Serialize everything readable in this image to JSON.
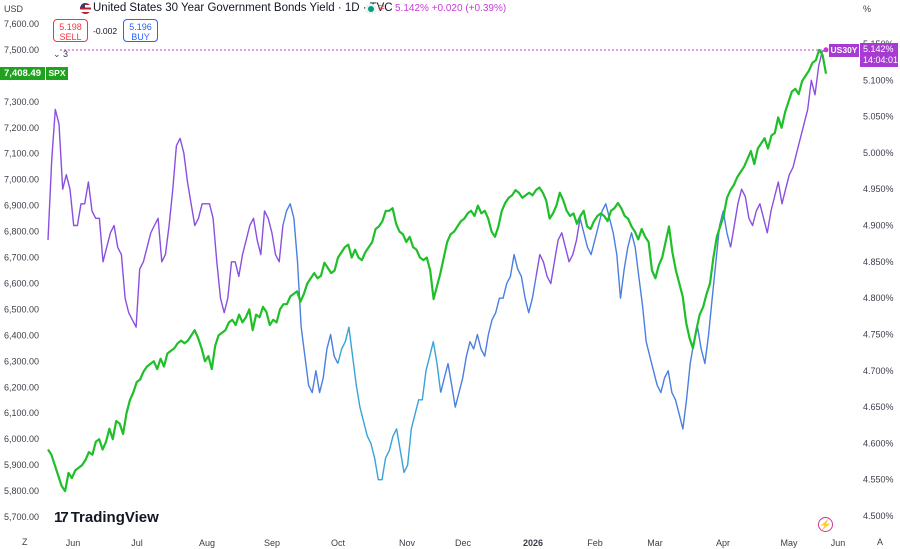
{
  "header": {
    "title": "United States 30 Year Government Bonds Yield · 1D · TVC",
    "price_line": "5.142% +0.020 (+0.39%)",
    "wave_icon": "≈",
    "sell_price": "5.198",
    "sell_label": "SELL",
    "spread": "-0.002",
    "buy_price": "5.196",
    "buy_label": "BUY",
    "collapse": "⌄ 3"
  },
  "axes": {
    "left_unit": "USD",
    "right_unit": "%",
    "spx_value": "7,408.49",
    "spx_tag": "SPX",
    "us_tag": "US30Y",
    "us_value": "5.142%",
    "us_countdown": "14:04:01"
  },
  "footer": {
    "logo_text": "TradingView",
    "logo_mark": "17",
    "z_button": "Z",
    "a_button": "A"
  },
  "colors": {
    "spx": "#1fbf2a",
    "us30y_purple": "#8a4fe0",
    "us30y_blue": "#4a7fe0",
    "us30y_teal": "#37a3d8",
    "current_line": "#c93bd9"
  },
  "chart_data": {
    "type": "line",
    "title": "United States 30 Year Government Bonds Yield · 1D · TVC",
    "left_axis": {
      "label": "USD",
      "ticks": [
        "7,600.00",
        "7,500.00",
        "7,400.00",
        "7,300.00",
        "7,200.00",
        "7,100.00",
        "7,000.00",
        "6,900.00",
        "6,800.00",
        "6,700.00",
        "6,600.00",
        "6,500.00",
        "6,400.00",
        "6,300.00",
        "6,200.00",
        "6,100.00",
        "6,000.00",
        "5,900.00",
        "5,800.00",
        "5,700.00"
      ],
      "range": [
        5700,
        7600
      ]
    },
    "right_axis": {
      "label": "%",
      "ticks": [
        "5.150%",
        "5.100%",
        "5.050%",
        "5.000%",
        "4.950%",
        "4.900%",
        "4.850%",
        "4.800%",
        "4.750%",
        "4.700%",
        "4.650%",
        "4.600%",
        "4.550%",
        "4.500%"
      ],
      "range": [
        4.5,
        5.15
      ]
    },
    "x_labels": [
      "Jun",
      "Jul",
      "Aug",
      "Sep",
      "Oct",
      "Nov",
      "Dec",
      "2026",
      "Feb",
      "Mar",
      "Apr",
      "May",
      "Jun"
    ],
    "x_labels_bold": [
      "2026"
    ],
    "grid": false,
    "series": [
      {
        "name": "SPX",
        "axis": "left",
        "values": [
          5960,
          5940,
          5900,
          5860,
          5820,
          5800,
          5870,
          5850,
          5880,
          5890,
          5900,
          5920,
          5950,
          5940,
          5990,
          6000,
          5960,
          5990,
          6040,
          6000,
          6070,
          6060,
          6020,
          6100,
          6150,
          6180,
          6220,
          6230,
          6260,
          6280,
          6290,
          6300,
          6270,
          6310,
          6280,
          6330,
          6340,
          6350,
          6370,
          6380,
          6370,
          6380,
          6400,
          6420,
          6390,
          6350,
          6300,
          6320,
          6270,
          6360,
          6400,
          6410,
          6420,
          6450,
          6460,
          6440,
          6480,
          6450,
          6470,
          6500,
          6420,
          6480,
          6470,
          6510,
          6490,
          6440,
          6460,
          6450,
          6500,
          6520,
          6520,
          6550,
          6560,
          6570,
          6530,
          6560,
          6600,
          6620,
          6640,
          6620,
          6630,
          6680,
          6660,
          6640,
          6650,
          6700,
          6720,
          6740,
          6750,
          6700,
          6730,
          6700,
          6690,
          6720,
          6740,
          6760,
          6810,
          6820,
          6840,
          6880,
          6880,
          6890,
          6830,
          6800,
          6790,
          6760,
          6780,
          6740,
          6730,
          6700,
          6690,
          6700,
          6650,
          6540,
          6590,
          6640,
          6700,
          6760,
          6790,
          6800,
          6820,
          6840,
          6850,
          6870,
          6880,
          6860,
          6900,
          6870,
          6880,
          6850,
          6800,
          6780,
          6820,
          6880,
          6910,
          6930,
          6940,
          6960,
          6950,
          6930,
          6940,
          6950,
          6940,
          6960,
          6970,
          6950,
          6920,
          6850,
          6870,
          6900,
          6950,
          6920,
          6880,
          6860,
          6870,
          6830,
          6860,
          6880,
          6820,
          6810,
          6840,
          6860,
          6870,
          6860,
          6840,
          6880,
          6890,
          6910,
          6890,
          6860,
          6850,
          6820,
          6800,
          6770,
          6810,
          6780,
          6760,
          6650,
          6620,
          6670,
          6700,
          6760,
          6820,
          6720,
          6650,
          6600,
          6550,
          6450,
          6390,
          6350,
          6420,
          6480,
          6510,
          6560,
          6600,
          6700,
          6780,
          6820,
          6860,
          6930,
          6960,
          6980,
          7010,
          7030,
          7050,
          7080,
          7110,
          7060,
          7120,
          7140,
          7160,
          7120,
          7170,
          7180,
          7240,
          7200,
          7260,
          7300,
          7340,
          7350,
          7330,
          7380,
          7400,
          7420,
          7450,
          7460,
          7500,
          7480,
          7408.49
        ]
      },
      {
        "name": "US30Y",
        "axis": "right",
        "values": [
          4.88,
          4.99,
          5.06,
          5.04,
          4.95,
          4.97,
          4.95,
          4.9,
          4.9,
          4.93,
          4.93,
          4.96,
          4.92,
          4.91,
          4.91,
          4.85,
          4.87,
          4.89,
          4.9,
          4.87,
          4.86,
          4.8,
          4.78,
          4.77,
          4.76,
          4.84,
          4.85,
          4.87,
          4.89,
          4.9,
          4.91,
          4.85,
          4.86,
          4.9,
          4.95,
          5.01,
          5.02,
          5.0,
          4.96,
          4.93,
          4.9,
          4.91,
          4.93,
          4.93,
          4.93,
          4.91,
          4.85,
          4.8,
          4.78,
          4.8,
          4.85,
          4.85,
          4.83,
          4.86,
          4.88,
          4.9,
          4.91,
          4.88,
          4.86,
          4.92,
          4.91,
          4.89,
          4.86,
          4.85,
          4.9,
          4.92,
          4.93,
          4.91,
          4.85,
          4.76,
          4.72,
          4.68,
          4.67,
          4.7,
          4.67,
          4.69,
          4.73,
          4.75,
          4.72,
          4.71,
          4.73,
          4.74,
          4.76,
          4.72,
          4.68,
          4.65,
          4.63,
          4.61,
          4.6,
          4.58,
          4.55,
          4.55,
          4.58,
          4.59,
          4.61,
          4.62,
          4.59,
          4.56,
          4.57,
          4.62,
          4.64,
          4.66,
          4.66,
          4.7,
          4.72,
          4.74,
          4.71,
          4.67,
          4.69,
          4.71,
          4.68,
          4.65,
          4.67,
          4.69,
          4.72,
          4.74,
          4.73,
          4.75,
          4.73,
          4.72,
          4.75,
          4.77,
          4.78,
          4.8,
          4.8,
          4.82,
          4.83,
          4.86,
          4.84,
          4.83,
          4.8,
          4.78,
          4.8,
          4.83,
          4.86,
          4.85,
          4.83,
          4.82,
          4.85,
          4.88,
          4.89,
          4.87,
          4.85,
          4.86,
          4.88,
          4.91,
          4.89,
          4.87,
          4.86,
          4.88,
          4.9,
          4.92,
          4.93,
          4.91,
          4.89,
          4.86,
          4.8,
          4.84,
          4.87,
          4.89,
          4.87,
          4.83,
          4.79,
          4.74,
          4.72,
          4.7,
          4.68,
          4.67,
          4.69,
          4.7,
          4.67,
          4.66,
          4.64,
          4.62,
          4.66,
          4.71,
          4.74,
          4.76,
          4.73,
          4.71,
          4.75,
          4.8,
          4.85,
          4.9,
          4.92,
          4.89,
          4.87,
          4.9,
          4.93,
          4.95,
          4.94,
          4.91,
          4.9,
          4.92,
          4.93,
          4.91,
          4.89,
          4.92,
          4.94,
          4.96,
          4.93,
          4.95,
          4.97,
          4.98,
          5.0,
          5.02,
          5.04,
          5.06,
          5.1,
          5.08,
          5.12,
          5.14,
          5.142
        ]
      }
    ]
  }
}
